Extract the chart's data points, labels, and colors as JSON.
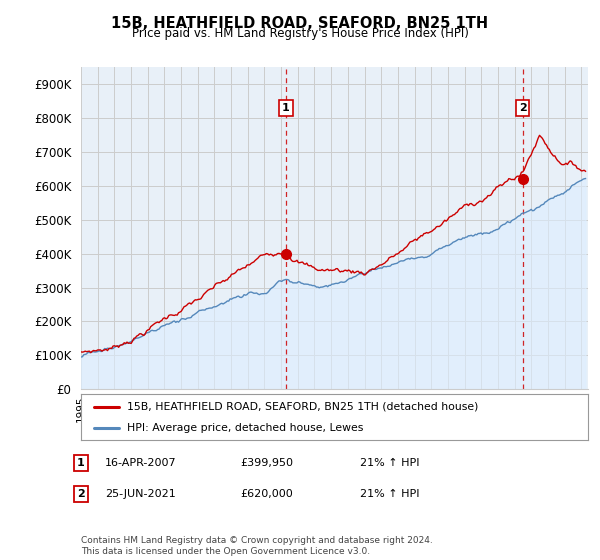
{
  "title": "15B, HEATHFIELD ROAD, SEAFORD, BN25 1TH",
  "subtitle": "Price paid vs. HM Land Registry's House Price Index (HPI)",
  "ylabel_ticks": [
    "£0",
    "£100K",
    "£200K",
    "£300K",
    "£400K",
    "£500K",
    "£600K",
    "£700K",
    "£800K",
    "£900K"
  ],
  "ylim": [
    0,
    950000
  ],
  "xlim_start": 1995.0,
  "xlim_end": 2025.4,
  "sale1_x": 2007.29,
  "sale1_y": 399950,
  "sale2_x": 2021.48,
  "sale2_y": 620000,
  "legend_line1": "15B, HEATHFIELD ROAD, SEAFORD, BN25 1TH (detached house)",
  "legend_line2": "HPI: Average price, detached house, Lewes",
  "annotation1_date": "16-APR-2007",
  "annotation1_price": "£399,950",
  "annotation1_hpi": "21% ↑ HPI",
  "annotation2_date": "25-JUN-2021",
  "annotation2_price": "£620,000",
  "annotation2_hpi": "21% ↑ HPI",
  "footer": "Contains HM Land Registry data © Crown copyright and database right 2024.\nThis data is licensed under the Open Government Licence v3.0.",
  "line_red_color": "#cc0000",
  "line_blue_color": "#5588bb",
  "fill_blue_color": "#ddeeff",
  "bg_plot_color": "#e8f0f8",
  "bg_color": "#ffffff",
  "grid_color": "#cccccc"
}
